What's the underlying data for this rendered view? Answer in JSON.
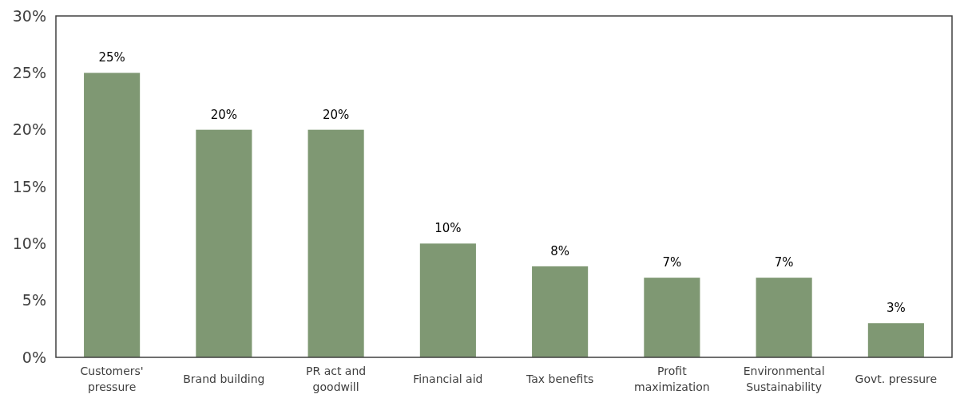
{
  "chart_data": {
    "type": "bar",
    "categories": [
      "Customers' pressure",
      "Brand building",
      "PR act and goodwill",
      "Financial aid",
      "Tax benefits",
      "Profit maximization",
      "Environmental Sustainability",
      "Govt. pressure"
    ],
    "values": [
      25,
      20,
      20,
      10,
      8,
      7,
      7,
      3
    ],
    "value_labels": [
      "25%",
      "20%",
      "20%",
      "10%",
      "8%",
      "7%",
      "7%",
      "3%"
    ],
    "color": "#7f9873",
    "ylim": [
      0,
      30
    ],
    "yticks": [
      {
        "value": 0,
        "label": "0%"
      },
      {
        "value": 5,
        "label": "5%"
      },
      {
        "value": 10,
        "label": "10%"
      },
      {
        "value": 15,
        "label": "15%"
      },
      {
        "value": 20,
        "label": "20%"
      },
      {
        "value": 25,
        "label": "25%"
      },
      {
        "value": 30,
        "label": "30%"
      }
    ],
    "grid": false
  }
}
